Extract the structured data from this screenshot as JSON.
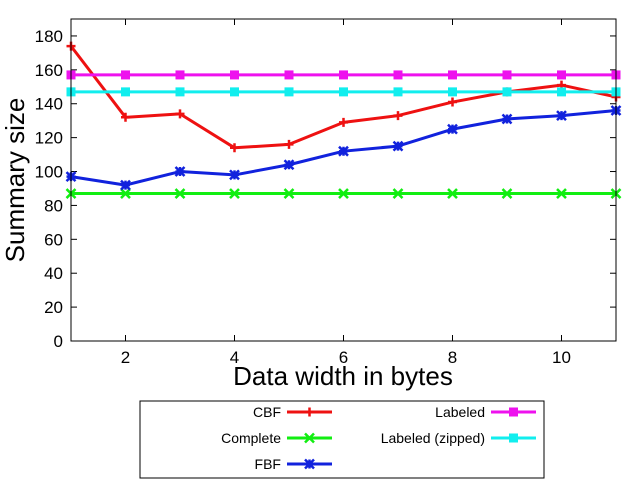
{
  "chart_data": {
    "type": "line",
    "title": "",
    "xlabel": "Data width in bytes",
    "ylabel": "Summary size",
    "xlim": [
      1,
      11
    ],
    "ylim": [
      0,
      190
    ],
    "xticks": [
      2,
      4,
      6,
      8,
      10
    ],
    "yticks": [
      0,
      20,
      40,
      60,
      80,
      100,
      120,
      140,
      160,
      180
    ],
    "grid": false,
    "legend_position": "below plot",
    "x": [
      1,
      2,
      3,
      4,
      5,
      6,
      7,
      8,
      9,
      10,
      11
    ],
    "series": [
      {
        "name": "CBF",
        "color": "#ee1111",
        "marker": "plus",
        "values": [
          174,
          132,
          134,
          114,
          116,
          129,
          133,
          141,
          147,
          151,
          144
        ]
      },
      {
        "name": "Complete",
        "color": "#11ee11",
        "marker": "x",
        "values": [
          87,
          87,
          87,
          87,
          87,
          87,
          87,
          87,
          87,
          87,
          87
        ]
      },
      {
        "name": "FBF",
        "color": "#1122dd",
        "marker": "star",
        "values": [
          97,
          92,
          100,
          98,
          104,
          112,
          115,
          125,
          131,
          133,
          136
        ]
      },
      {
        "name": "Labeled",
        "color": "#ee11ee",
        "marker": "filled-square",
        "values": [
          157,
          157,
          157,
          157,
          157,
          157,
          157,
          157,
          157,
          157,
          157
        ]
      },
      {
        "name": "Labeled (zipped)",
        "color": "#11eeee",
        "marker": "filled-square",
        "values": [
          147,
          147,
          147,
          147,
          147,
          147,
          147,
          147,
          147,
          147,
          147
        ]
      }
    ]
  }
}
